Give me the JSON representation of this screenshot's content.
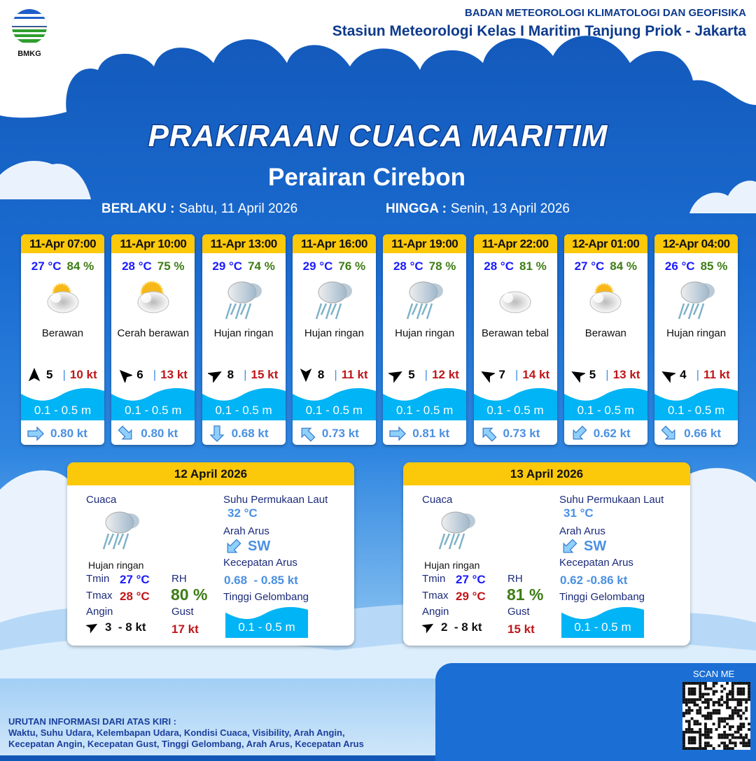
{
  "header": {
    "logo_text": "BMKG",
    "agency": "BADAN METEOROLOGI KLIMATOLOGI DAN GEOFISIKA",
    "station": "Stasiun Meteorologi Kelas I Maritim Tanjung Priok - Jakarta"
  },
  "title": "PRAKIRAAN CUACA MARITIM",
  "subtitle": "Perairan Cirebon",
  "validity": {
    "from_label": "BERLAKU :",
    "from": "Sabtu, 11 April 2026",
    "to_label": "HINGGA :",
    "to": "Senin, 13 April 2026"
  },
  "colors": {
    "header_yellow": "#fcc80a",
    "temp": "#1a1aff",
    "rh": "#3e7d16",
    "gust": "#c0161a",
    "current": "#4a90e2",
    "wave": "#00b4f5"
  },
  "forecasts": [
    {
      "time": "11-Apr 07:00",
      "temp": "27 °C",
      "rh": "84 %",
      "icon": "partly-cloudy-icon",
      "weather": "Berawan",
      "wind_dir_deg": 0,
      "wind": "5",
      "gust": "10 kt",
      "wave": "0.1 - 0.5 m",
      "current_dir_deg": 90,
      "current": "0.80 kt"
    },
    {
      "time": "11-Apr 10:00",
      "temp": "28 °C",
      "rh": "75 %",
      "icon": "sunny-cloud-icon",
      "weather": "Cerah berawan",
      "wind_dir_deg": -45,
      "wind": "6",
      "gust": "13 kt",
      "wave": "0.1 - 0.5 m",
      "current_dir_deg": 135,
      "current": "0.80 kt"
    },
    {
      "time": "11-Apr 13:00",
      "temp": "29 °C",
      "rh": "74 %",
      "icon": "rain-icon",
      "weather": "Hujan ringan",
      "wind_dir_deg": 60,
      "wind": "8",
      "gust": "15 kt",
      "wave": "0.1 - 0.5 m",
      "current_dir_deg": 180,
      "current": "0.68 kt"
    },
    {
      "time": "11-Apr 16:00",
      "temp": "29 °C",
      "rh": "76 %",
      "icon": "rain-icon",
      "weather": "Hujan ringan",
      "wind_dir_deg": 180,
      "wind": "8",
      "gust": "11 kt",
      "wave": "0.1 - 0.5 m",
      "current_dir_deg": 315,
      "current": "0.73 kt"
    },
    {
      "time": "11-Apr 19:00",
      "temp": "28 °C",
      "rh": "78 %",
      "icon": "rain-icon",
      "weather": "Hujan ringan",
      "wind_dir_deg": 60,
      "wind": "5",
      "gust": "12 kt",
      "wave": "0.1 - 0.5 m",
      "current_dir_deg": 90,
      "current": "0.81 kt"
    },
    {
      "time": "11-Apr 22:00",
      "temp": "28 °C",
      "rh": "81 %",
      "icon": "cloudy-icon",
      "weather": "Berawan tebal",
      "wind_dir_deg": -60,
      "wind": "7",
      "gust": "14 kt",
      "wave": "0.1 - 0.5 m",
      "current_dir_deg": 315,
      "current": "0.73 kt"
    },
    {
      "time": "12-Apr 01:00",
      "temp": "27 °C",
      "rh": "84 %",
      "icon": "partly-cloudy-icon",
      "weather": "Berawan",
      "wind_dir_deg": -60,
      "wind": "5",
      "gust": "13 kt",
      "wave": "0.1 - 0.5 m",
      "current_dir_deg": 225,
      "current": "0.62 kt"
    },
    {
      "time": "12-Apr 04:00",
      "temp": "26 °C",
      "rh": "85 %",
      "icon": "rain-icon",
      "weather": "Hujan ringan",
      "wind_dir_deg": -60,
      "wind": "4",
      "gust": "11 kt",
      "wave": "0.1 - 0.5 m",
      "current_dir_deg": 135,
      "current": "0.66 kt"
    }
  ],
  "daily": [
    {
      "date": "12 April 2026",
      "weather_label": "Cuaca",
      "weather": "Hujan ringan",
      "tmin_label": "Tmin",
      "tmin": "27 °C",
      "tmax_label": "Tmax",
      "tmax": "28 °C",
      "rh_label": "RH",
      "rh": "80 %",
      "wind_label": "Angin",
      "wind_dir_deg": 60,
      "wind": "3  - 8 kt",
      "gust_label": "Gust",
      "gust": "17 kt",
      "sst_label": "Suhu Permukaan Laut",
      "sst": "32 °C",
      "cur_dir_label": "Arah Arus",
      "cur_dir": "SW",
      "cur_speed_label": "Kecepatan Arus",
      "cur_speed": "0.68  - 0.85 kt",
      "wave_label": "Tinggi Gelombang",
      "wave": "0.1 - 0.5 m"
    },
    {
      "date": "13 April 2026",
      "weather_label": "Cuaca",
      "weather": "Hujan ringan",
      "tmin_label": "Tmin",
      "tmin": "27 °C",
      "tmax_label": "Tmax",
      "tmax": "29 °C",
      "rh_label": "RH",
      "rh": "81 %",
      "wind_label": "Angin",
      "wind_dir_deg": 60,
      "wind": "2  - 8 kt",
      "gust_label": "Gust",
      "gust": "15 kt",
      "sst_label": "Suhu Permukaan Laut",
      "sst": "31 °C",
      "cur_dir_label": "Arah Arus",
      "cur_dir": "SW",
      "cur_speed_label": "Kecepatan Arus",
      "cur_speed": "0.62 -0.86 kt",
      "wave_label": "Tinggi Gelombang",
      "wave": "0.1 - 0.5 m"
    }
  ],
  "legend": {
    "title": "URUTAN INFORMASI DARI ATAS KIRI :",
    "line1": "Waktu, Suhu Udara, Kelembapan Udara, Kondisi Cuaca, Visibility, Arah Angin,",
    "line2": "Kecepatan Angin, Kecepatan Gust, Tinggi Gelombang, Arah Arus, Kecepatan Arus"
  },
  "qr": {
    "label": "SCAN ME"
  }
}
